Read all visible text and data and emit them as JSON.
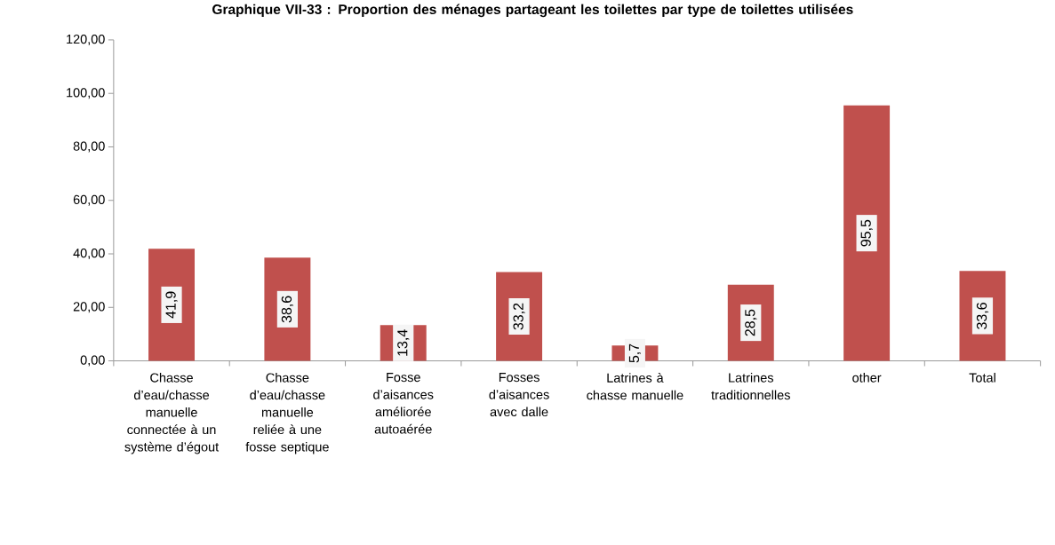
{
  "chart_data": {
    "type": "bar",
    "title": "Graphique VII-33 : Proportion des ménages partageant les toilettes par type de toilettes utilisées",
    "categories": [
      "Chasse d’eau/chasse manuelle connectée à un système d’égout",
      "Chasse d’eau/chasse manuelle reliée à une fosse septique",
      "Fosse d’aisances améliorée autoaérée",
      "Fosses d’aisances avec dalle",
      "Latrines à chasse manuelle",
      "Latrines traditionnelles",
      "other",
      "Total"
    ],
    "values": [
      41.9,
      38.6,
      13.4,
      33.2,
      5.7,
      28.5,
      95.5,
      33.6
    ],
    "value_labels": [
      "41,9",
      "38,6",
      "13,4",
      "33,2",
      "5,7",
      "28,5",
      "95,5",
      "33,6"
    ],
    "color": "#c0504d",
    "ylim": [
      0,
      120
    ],
    "yticks": [
      {
        "value": 0,
        "label": "0,00"
      },
      {
        "value": 20,
        "label": "20,00"
      },
      {
        "value": 40,
        "label": "40,00"
      },
      {
        "value": 60,
        "label": "60,00"
      },
      {
        "value": 80,
        "label": "80,00"
      },
      {
        "value": 100,
        "label": "100,00"
      },
      {
        "value": 120,
        "label": "120,00"
      }
    ]
  }
}
